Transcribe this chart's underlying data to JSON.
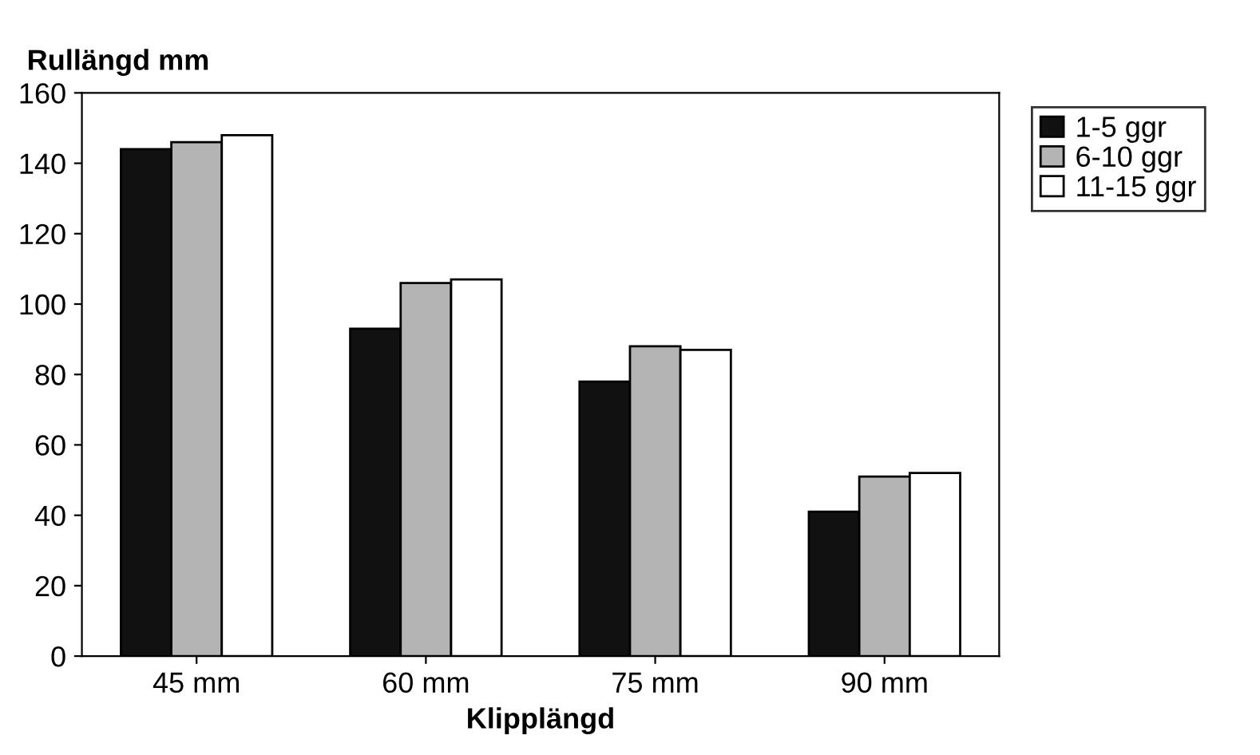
{
  "chart_data": {
    "type": "bar",
    "ylabel": "Rullängd mm",
    "xlabel": "Klipplängd",
    "categories": [
      "45 mm",
      "60 mm",
      "75 mm",
      "90 mm"
    ],
    "series": [
      {
        "name": "1-5 ggr",
        "color": "#111111",
        "values": [
          144,
          93,
          78,
          41
        ]
      },
      {
        "name": "6-10 ggr",
        "color": "#b4b4b4",
        "values": [
          146,
          106,
          88,
          51
        ]
      },
      {
        "name": "11-15 ggr",
        "color": "#ffffff",
        "values": [
          148,
          107,
          87,
          52
        ]
      }
    ],
    "ylim": [
      0,
      160
    ],
    "yticks": [
      0,
      20,
      40,
      60,
      80,
      100,
      120,
      140,
      160
    ],
    "grid": false,
    "legend": "top right"
  }
}
